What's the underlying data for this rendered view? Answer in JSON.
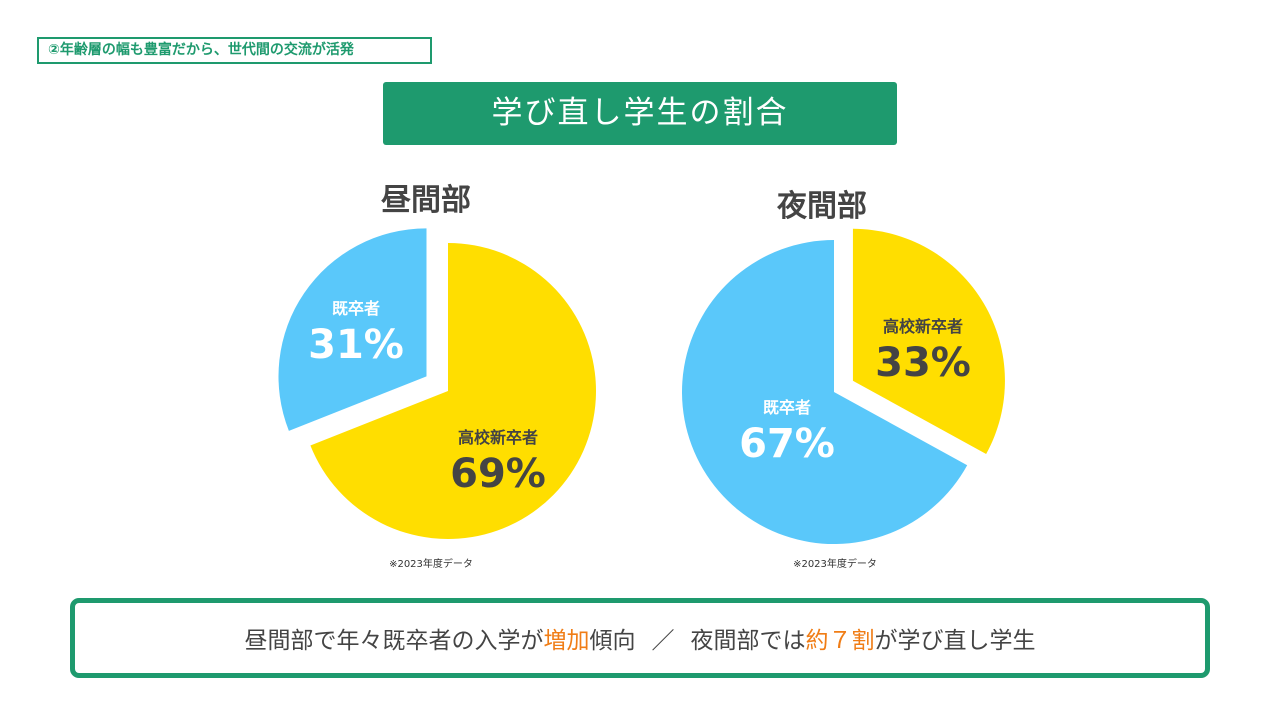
{
  "section_tag": "②年齢層の幅も豊富だから、世代間の交流が活発",
  "title": "学び直し学生の割合",
  "colors": {
    "accent_green": "#1e9a6e",
    "yellow": "#ffde00",
    "blue": "#5ac8fa",
    "orange": "#f07d16",
    "text_dark": "#444444"
  },
  "chart_data": [
    {
      "type": "pie",
      "title": "昼間部",
      "note": "※2023年度データ",
      "slices": [
        {
          "label": "既卒者",
          "value": 31,
          "value_text": "31%",
          "color": "#5ac8fa",
          "exploded": true
        },
        {
          "label": "高校新卒者",
          "value": 69,
          "value_text": "69%",
          "color": "#ffde00",
          "exploded": false
        }
      ]
    },
    {
      "type": "pie",
      "title": "夜間部",
      "note": "※2023年度データ",
      "slices": [
        {
          "label": "高校新卒者",
          "value": 33,
          "value_text": "33%",
          "color": "#ffde00",
          "exploded": true
        },
        {
          "label": "既卒者",
          "value": 67,
          "value_text": "67%",
          "color": "#5ac8fa",
          "exploded": false
        }
      ]
    }
  ],
  "summary": {
    "part1": "昼間部で年々既卒者の入学が",
    "highlight1": "増加",
    "part2": "傾向",
    "separator": "／",
    "part3": "夜間部では",
    "highlight2": "約７割",
    "part4": "が学び直し学生"
  }
}
